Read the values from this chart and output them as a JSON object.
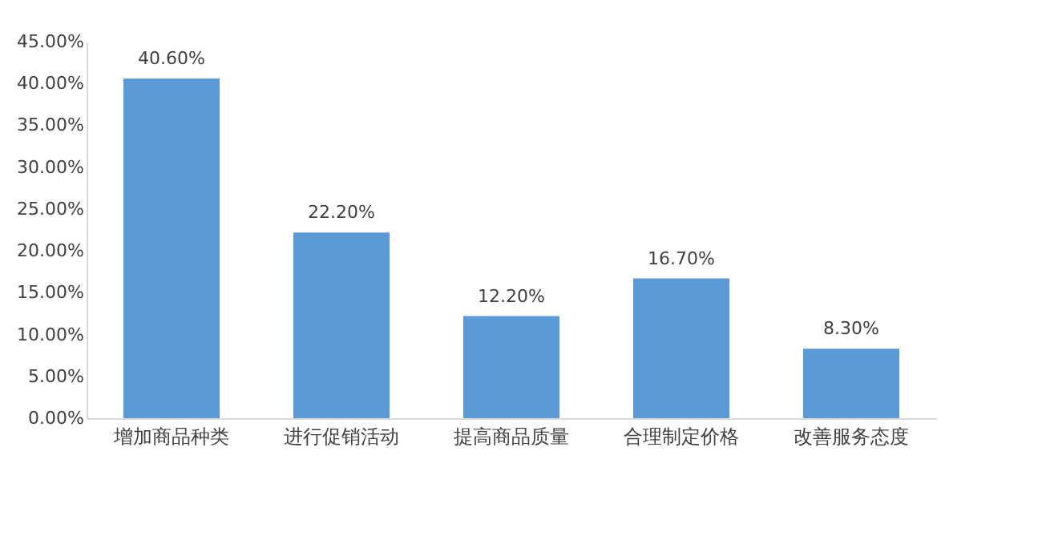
{
  "chart_data": {
    "type": "bar",
    "categories": [
      "增加商品种类",
      "进行促销活动",
      "提高商品质量",
      "合理制定价格",
      "改善服务态度"
    ],
    "series": [
      {
        "color": "#5b9bd5",
        "values": [
          40.6,
          22.2,
          12.2,
          16.7,
          8.3
        ],
        "value_labels": [
          "40.60%",
          "22.20%",
          "12.20%",
          "16.70%",
          "8.30%"
        ]
      }
    ],
    "ylim": [
      0,
      45
    ],
    "yticks": [
      {
        "value": 0,
        "label": "0.00%"
      },
      {
        "value": 5,
        "label": "5.00%"
      },
      {
        "value": 10,
        "label": "10.00%"
      },
      {
        "value": 15,
        "label": "15.00%"
      },
      {
        "value": 20,
        "label": "20.00%"
      },
      {
        "value": 25,
        "label": "25.00%"
      },
      {
        "value": 30,
        "label": "30.00%"
      },
      {
        "value": 35,
        "label": "35.00%"
      },
      {
        "value": 40,
        "label": "40.00%"
      },
      {
        "value": 45,
        "label": "45.00%"
      }
    ],
    "grid": false
  }
}
